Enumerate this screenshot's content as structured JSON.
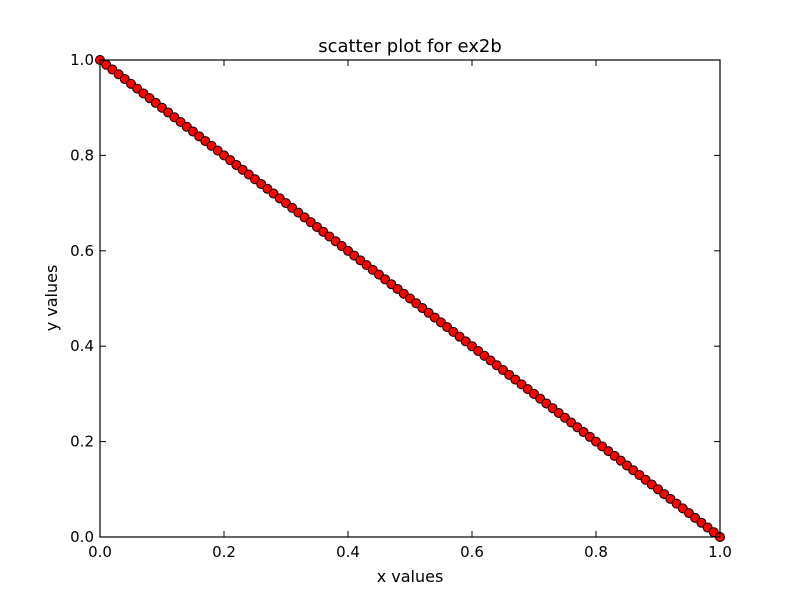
{
  "chart_data": {
    "type": "scatter",
    "title": "scatter plot for ex2b",
    "xlabel": "x values",
    "ylabel": "y values",
    "xlim": [
      0.0,
      1.0
    ],
    "ylim": [
      0.0,
      1.0
    ],
    "xticks": [
      "0.0",
      "0.2",
      "0.4",
      "0.6",
      "0.8",
      "1.0"
    ],
    "yticks": [
      "0.0",
      "0.2",
      "0.4",
      "0.6",
      "0.8",
      "1.0"
    ],
    "grid": false,
    "marker_color": "#ff0000",
    "marker_edge_color": "#000000",
    "series": [
      {
        "x": [
          0.0,
          0.01,
          0.02,
          0.03,
          0.04,
          0.05,
          0.06,
          0.07,
          0.08,
          0.09,
          0.1,
          0.11,
          0.12,
          0.13,
          0.14,
          0.15,
          0.16,
          0.17,
          0.18,
          0.19,
          0.2,
          0.21,
          0.22,
          0.23,
          0.24,
          0.25,
          0.26,
          0.27,
          0.28,
          0.29,
          0.3,
          0.31,
          0.32,
          0.33,
          0.34,
          0.35,
          0.36,
          0.37,
          0.38,
          0.39,
          0.4,
          0.41,
          0.42,
          0.43,
          0.44,
          0.45,
          0.46,
          0.47,
          0.48,
          0.49,
          0.5,
          0.51,
          0.52,
          0.53,
          0.54,
          0.55,
          0.56,
          0.57,
          0.58,
          0.59,
          0.6,
          0.61,
          0.62,
          0.63,
          0.64,
          0.65,
          0.66,
          0.67,
          0.68,
          0.69,
          0.7,
          0.71,
          0.72,
          0.73,
          0.74,
          0.75,
          0.76,
          0.77,
          0.78,
          0.79,
          0.8,
          0.81,
          0.82,
          0.83,
          0.84,
          0.85,
          0.86,
          0.87,
          0.88,
          0.89,
          0.9,
          0.91,
          0.92,
          0.93,
          0.94,
          0.95,
          0.96,
          0.97,
          0.98,
          0.99,
          1.0
        ],
        "y": [
          1.0,
          0.99,
          0.98,
          0.97,
          0.96,
          0.95,
          0.94,
          0.93,
          0.92,
          0.91,
          0.9,
          0.89,
          0.88,
          0.87,
          0.86,
          0.85,
          0.84,
          0.83,
          0.82,
          0.81,
          0.8,
          0.79,
          0.78,
          0.77,
          0.76,
          0.75,
          0.74,
          0.73,
          0.72,
          0.71,
          0.7,
          0.69,
          0.68,
          0.67,
          0.66,
          0.65,
          0.64,
          0.63,
          0.62,
          0.61,
          0.6,
          0.59,
          0.58,
          0.57,
          0.56,
          0.55,
          0.54,
          0.53,
          0.52,
          0.51,
          0.5,
          0.49,
          0.48,
          0.47,
          0.46,
          0.45,
          0.44,
          0.43,
          0.42,
          0.41,
          0.4,
          0.39,
          0.38,
          0.37,
          0.36,
          0.35,
          0.34,
          0.33,
          0.32,
          0.31,
          0.3,
          0.29,
          0.28,
          0.27,
          0.26,
          0.25,
          0.24,
          0.23,
          0.22,
          0.21,
          0.2,
          0.19,
          0.18,
          0.17,
          0.16,
          0.15,
          0.14,
          0.13,
          0.12,
          0.11,
          0.1,
          0.09,
          0.08,
          0.07,
          0.06,
          0.05,
          0.04,
          0.03,
          0.02,
          0.01,
          0.0
        ]
      }
    ]
  }
}
